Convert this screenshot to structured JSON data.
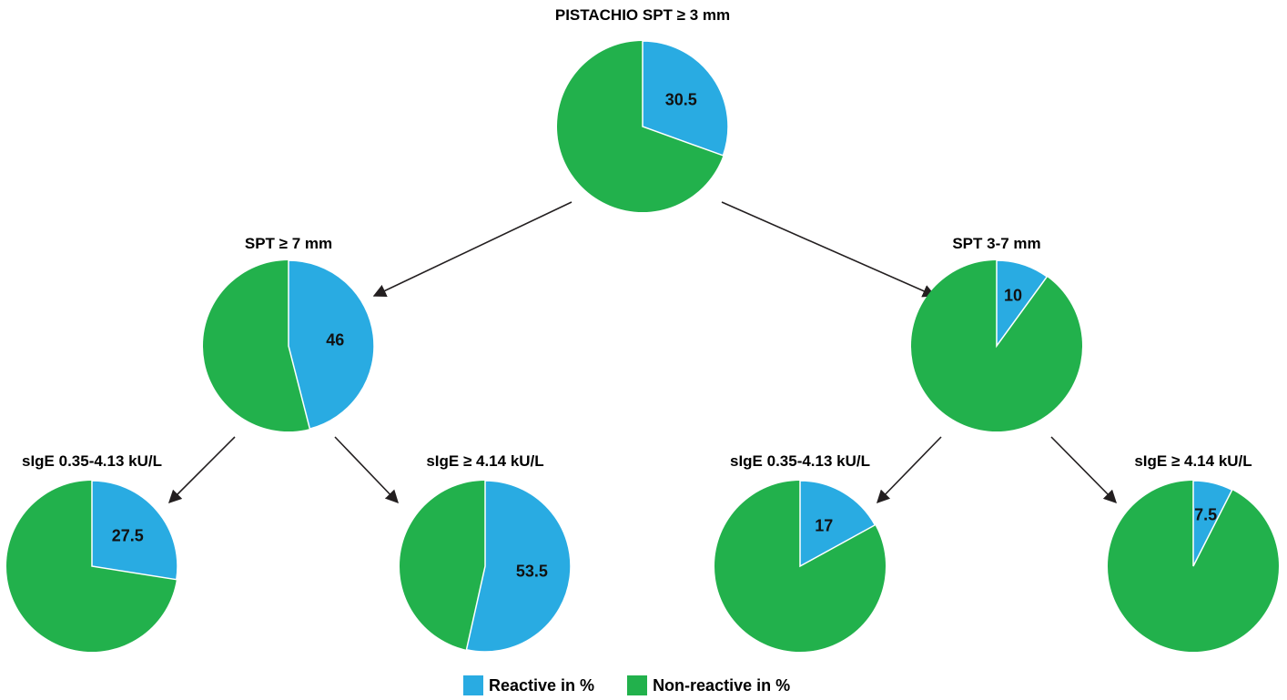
{
  "colors": {
    "reactive": "#29abe2",
    "non_reactive": "#22b14c"
  },
  "legend": [
    {
      "label": "Reactive in %",
      "color": "#29abe2"
    },
    {
      "label": "Non-reactive in %",
      "color": "#22b14c"
    }
  ],
  "chart_data": {
    "type": "pie",
    "unit": "%",
    "series_names": [
      "Reactive in %",
      "Non-reactive in %"
    ],
    "charts": [
      {
        "id": "root",
        "title": "PISTACHIO SPT ≥ 3 mm",
        "reactive": 30.5,
        "label": "30.5",
        "parent": null
      },
      {
        "id": "spt7",
        "title": "SPT ≥ 7 mm",
        "reactive": 46,
        "label": "46",
        "parent": "root"
      },
      {
        "id": "spt37",
        "title": "SPT 3-7 mm",
        "reactive": 10,
        "label": "10",
        "parent": "root"
      },
      {
        "id": "spt7_low",
        "title": "sIgE 0.35-4.13 kU/L",
        "reactive": 27.5,
        "label": "27.5",
        "parent": "spt7"
      },
      {
        "id": "spt7_high",
        "title": "sIgE ≥ 4.14 kU/L",
        "reactive": 53.5,
        "label": "53.5",
        "parent": "spt7"
      },
      {
        "id": "spt37_low",
        "title": "sIgE 0.35-4.13 kU/L",
        "reactive": 17,
        "label": "17",
        "parent": "spt37"
      },
      {
        "id": "spt37_high",
        "title": "sIgE ≥ 4.14 kU/L",
        "reactive": 7.5,
        "label": "7.5",
        "parent": "spt37"
      }
    ]
  }
}
